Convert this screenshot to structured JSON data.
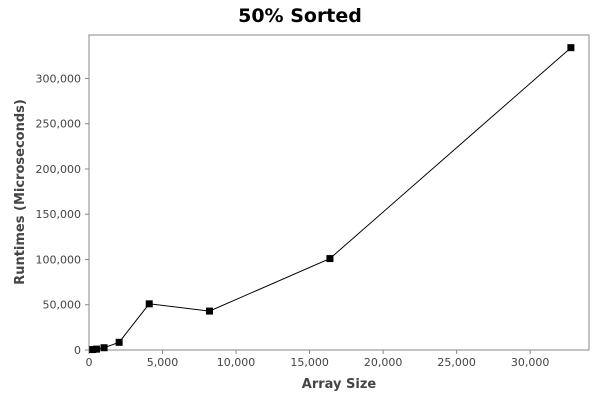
{
  "chart_data": {
    "type": "line",
    "title": "50% Sorted",
    "xlabel": "Array Size",
    "ylabel": "Runtimes (Microseconds)",
    "xlim": [
      0,
      34000
    ],
    "ylim": [
      0,
      348000
    ],
    "xticks": [
      0,
      5000,
      10000,
      15000,
      20000,
      25000,
      30000
    ],
    "xtick_labels": [
      "0",
      "5,000",
      "10,000",
      "15,000",
      "20,000",
      "25,000",
      "30,000"
    ],
    "yticks": [
      0,
      50000,
      100000,
      150000,
      200000,
      250000,
      300000
    ],
    "ytick_labels": [
      "0",
      "50,000",
      "100,000",
      "150,000",
      "200,000",
      "250,000",
      "300,000"
    ],
    "grid": false,
    "legend": false,
    "series": [
      {
        "marker": "square",
        "color": "#000000",
        "x": [
          256,
          512,
          1024,
          2048,
          4096,
          8192,
          16384,
          32768
        ],
        "y": [
          500,
          1000,
          2500,
          8500,
          51000,
          43000,
          101000,
          334000
        ]
      }
    ]
  }
}
